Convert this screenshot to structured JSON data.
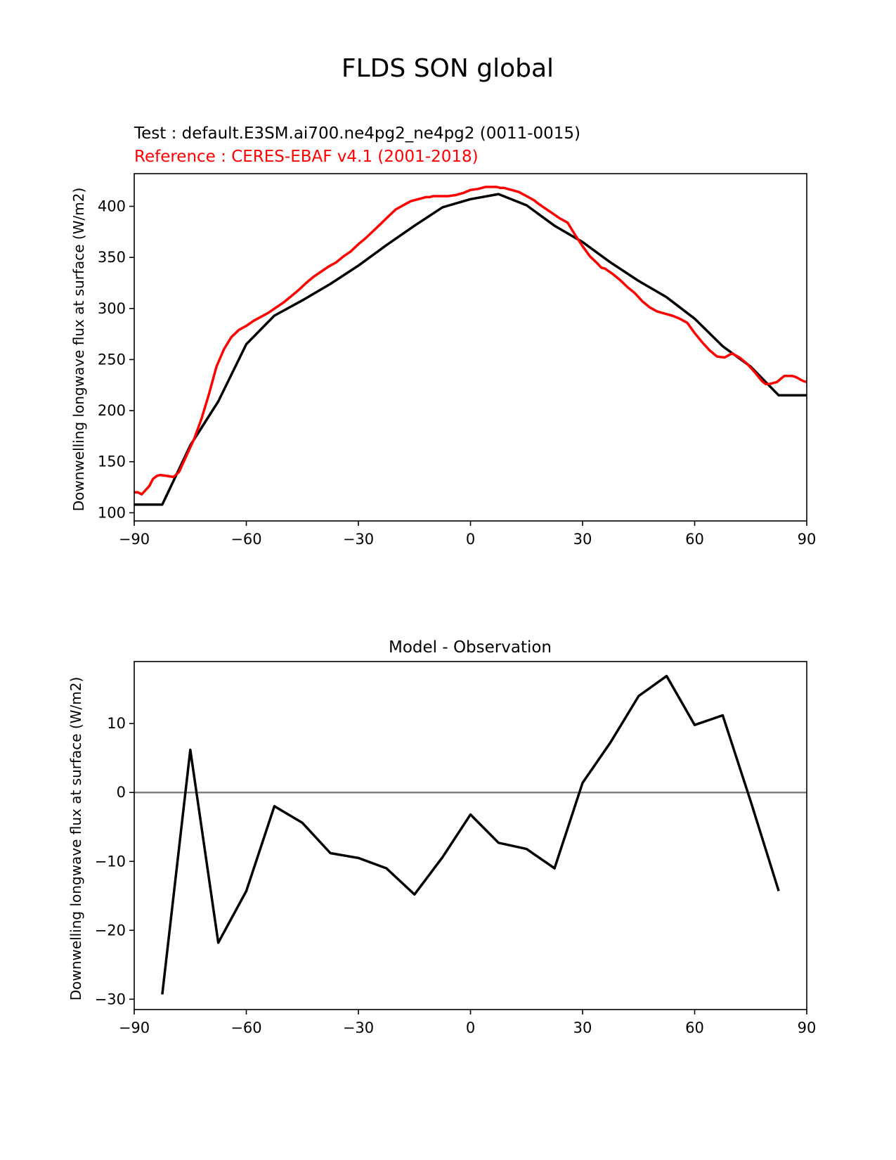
{
  "figure": {
    "suptitle": "FLDS SON global"
  },
  "chart_data": [
    {
      "type": "line",
      "title_test": "Test : default.E3SM.ai700.ne4pg2_ne4pg2 (0011-0015)",
      "title_reference": "Reference : CERES-EBAF v4.1 (2001-2018)",
      "xlabel": "",
      "ylabel": "Downwelling longwave flux at surface (W/m2)",
      "xlim": [
        -90,
        90
      ],
      "ylim": [
        92,
        432
      ],
      "xticks": [
        -90,
        -60,
        -30,
        0,
        30,
        60,
        90
      ],
      "xtick_labels": [
        "−90",
        "−60",
        "−30",
        "0",
        "30",
        "60",
        "90"
      ],
      "yticks": [
        100,
        150,
        200,
        250,
        300,
        350,
        400
      ],
      "yticks_labels": [
        "100",
        "150",
        "200",
        "250",
        "300",
        "350",
        "400"
      ],
      "grid": false,
      "series": [
        {
          "color": "#000000",
          "x": [
            -90,
            -82.5,
            -75,
            -67.5,
            -60,
            -52.5,
            -45,
            -37.5,
            -30,
            -22.5,
            -15,
            -7.5,
            0,
            7.5,
            15,
            22.5,
            30,
            37.5,
            45,
            52.5,
            60,
            67.5,
            75,
            82.5,
            90
          ],
          "y": [
            108,
            108,
            166,
            209,
            265,
            293,
            308,
            324,
            342,
            362,
            381,
            399,
            407,
            412,
            401,
            381,
            365,
            345,
            327,
            311,
            290,
            263,
            243,
            215,
            215
          ]
        },
        {
          "color": "#ff0000",
          "x": [
            -90,
            -89,
            -88,
            -86,
            -85,
            -84,
            -83,
            -81,
            -79.5,
            -78,
            -76,
            -74,
            -72,
            -70,
            -68,
            -66,
            -64,
            -62,
            -60,
            -58,
            -56,
            -54,
            -52,
            -50,
            -48,
            -46,
            -44,
            -42,
            -40,
            -38,
            -36,
            -34,
            -32,
            -30,
            -28,
            -26,
            -24,
            -22,
            -20,
            -18,
            -16,
            -14,
            -13,
            -12,
            -11,
            -10,
            -8,
            -6,
            -4,
            -2,
            0,
            2,
            3,
            4,
            5,
            6,
            7,
            8,
            9,
            10,
            11,
            12,
            13,
            14,
            15,
            16,
            17,
            18,
            20,
            22,
            24,
            26,
            27,
            28,
            30,
            32,
            34,
            35,
            36,
            38,
            40,
            42,
            44,
            46,
            48,
            50,
            52,
            54,
            56,
            58,
            60,
            62,
            64,
            66,
            68,
            70,
            72,
            74,
            76,
            78,
            79,
            80,
            82,
            84,
            86,
            87,
            88,
            89,
            90
          ],
          "y": [
            120,
            120,
            118,
            126,
            133,
            136,
            137,
            136,
            135,
            140,
            156,
            172,
            192,
            216,
            243,
            260,
            272,
            279,
            283,
            288,
            292,
            296,
            301,
            306,
            312,
            318,
            325,
            331,
            336,
            341,
            345,
            351,
            356,
            363,
            369,
            376,
            383,
            390,
            397,
            401,
            405,
            407,
            408,
            409,
            409,
            410,
            410,
            410,
            411,
            413,
            416,
            417,
            418,
            419,
            419,
            419,
            419,
            418,
            418,
            417,
            416,
            415,
            414,
            412,
            410,
            408,
            406,
            403,
            398,
            393,
            388,
            384,
            378,
            372,
            361,
            351,
            344,
            340,
            339,
            334,
            328,
            321,
            315,
            307,
            301,
            297,
            295,
            293,
            290,
            286,
            276,
            267,
            259,
            253,
            252,
            256,
            252,
            246,
            238,
            229,
            226,
            226,
            228,
            234,
            234,
            233,
            231,
            229,
            228
          ]
        }
      ]
    },
    {
      "type": "line",
      "title": "Model - Observation",
      "xlabel": "",
      "ylabel": "Downwelling longwave flux at surface (W/m2)",
      "xlim": [
        -90,
        90
      ],
      "ylim": [
        -31.5,
        19
      ],
      "xticks": [
        -90,
        -60,
        -30,
        0,
        30,
        60,
        90
      ],
      "xtick_labels": [
        "−90",
        "−60",
        "−30",
        "0",
        "30",
        "60",
        "90"
      ],
      "yticks": [
        -30,
        -20,
        -10,
        0,
        10
      ],
      "yticks_labels": [
        "−30",
        "−20",
        "−10",
        "0",
        "10"
      ],
      "zero_line_color": "#808080",
      "grid": false,
      "series": [
        {
          "color": "#000000",
          "x": [
            -82.5,
            -75,
            -67.5,
            -60,
            -52.5,
            -45,
            -37.5,
            -30,
            -22.5,
            -15,
            -7.5,
            0,
            7.5,
            15,
            22.5,
            30,
            37.5,
            45,
            52.5,
            60,
            67.5,
            75,
            82.5
          ],
          "y": [
            -29.3,
            6.2,
            -21.8,
            -14.3,
            -2.0,
            -4.4,
            -8.8,
            -9.5,
            -11.0,
            -14.8,
            -9.4,
            -3.2,
            -7.3,
            -8.2,
            -11.0,
            1.4,
            7.3,
            14.0,
            16.9,
            9.8,
            11.2,
            -1.3,
            -14.3
          ]
        }
      ]
    }
  ]
}
